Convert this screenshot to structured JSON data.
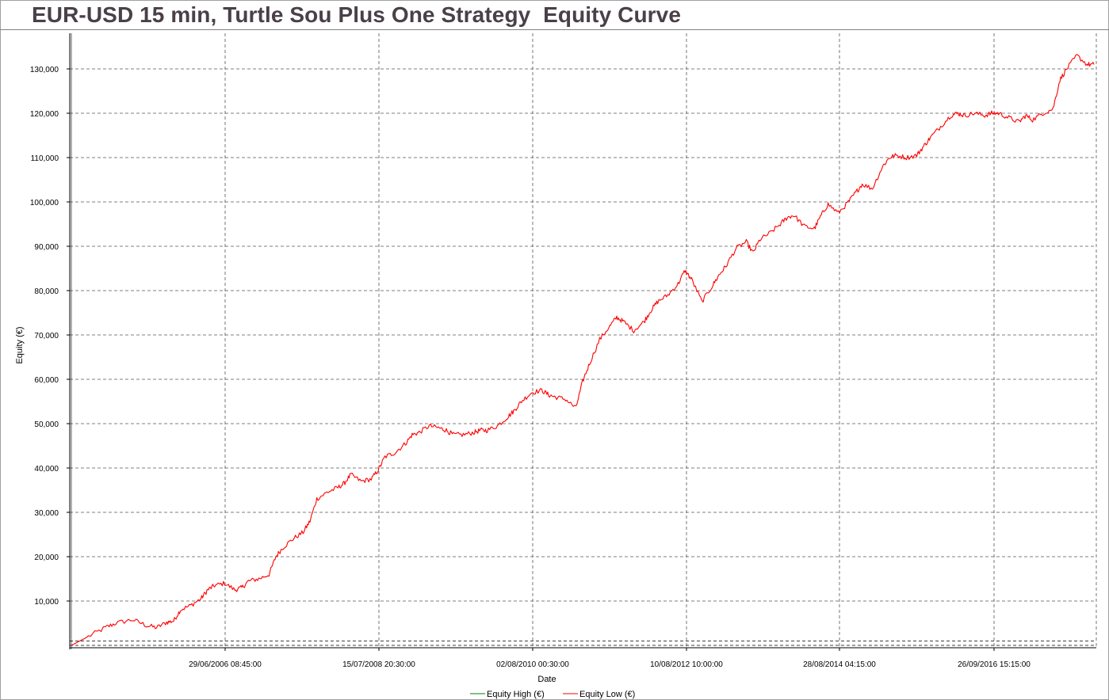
{
  "chart_data": {
    "type": "line",
    "title": "EUR-USD 15 min, Turtle Sou Plus One Strategy  Equity Curve",
    "xlabel": "Date",
    "ylabel": "Equity (€)",
    "ylim": [
      0,
      137000
    ],
    "y_ticks": [
      "10,000",
      "20,000",
      "30,000",
      "40,000",
      "50,000",
      "60,000",
      "70,000",
      "80,000",
      "90,000",
      "100,000",
      "110,000",
      "120,000",
      "130,000"
    ],
    "x_ticks": [
      "29/06/2006 08:45:00",
      "15/07/2008 20:30:00",
      "02/08/2010 00:30:00",
      "10/08/2012 10:00:00",
      "28/08/2014 04:15:00",
      "26/09/2016 15:15:00"
    ],
    "grid": true,
    "legend_position": "bottom",
    "baseline_value": 1000,
    "series": [
      {
        "name": "Equity High (€)",
        "color": "#008000",
        "values": []
      },
      {
        "name": "Equity Low (€)",
        "color": "#ff0000",
        "x": [
          0,
          5,
          10,
          13,
          18,
          22,
          25,
          28,
          30,
          32,
          35,
          38,
          40,
          42,
          45,
          48,
          50,
          52,
          55,
          58,
          60,
          62,
          65,
          68,
          70,
          72,
          75,
          78,
          80,
          82,
          85,
          88,
          90,
          92,
          95,
          98,
          100,
          102,
          105,
          108,
          110,
          112,
          115,
          118,
          120,
          122,
          125,
          128,
          130,
          132,
          135,
          138,
          140,
          142,
          145,
          148,
          150,
          152,
          155,
          158,
          160,
          162,
          165,
          168,
          170,
          172,
          175,
          178,
          180,
          182,
          185,
          188,
          190,
          192,
          195,
          198,
          200,
          202,
          205,
          208,
          210,
          212,
          215,
          218,
          220,
          222,
          225,
          228,
          230,
          232,
          235,
          238,
          240,
          242,
          245,
          248,
          250,
          252,
          255,
          258,
          260,
          262,
          265,
          268,
          270,
          272,
          275,
          278,
          280,
          282,
          285,
          288,
          290,
          292,
          295,
          298,
          300
        ],
        "y": [
          0,
          2000,
          4000,
          5000,
          5800,
          4500,
          4000,
          5200,
          5500,
          8000,
          9000,
          10500,
          12500,
          13500,
          14000,
          12500,
          13000,
          14500,
          15000,
          16000,
          20000,
          22000,
          24000,
          25500,
          28000,
          33000,
          34500,
          35500,
          36500,
          38500,
          37000,
          37500,
          39500,
          42500,
          43500,
          45500,
          47500,
          48000,
          49500,
          49000,
          48500,
          47500,
          47500,
          48000,
          48500,
          48500,
          49500,
          51500,
          53000,
          55000,
          57000,
          57500,
          56500,
          56000,
          55500,
          53500,
          59500,
          63500,
          69000,
          72000,
          74000,
          73000,
          71000,
          73000,
          75500,
          77500,
          79000,
          81500,
          84500,
          82500,
          77500,
          81000,
          83500,
          85500,
          89500,
          91000,
          88500,
          91500,
          93000,
          95000,
          96500,
          97000,
          94500,
          94000,
          97000,
          99500,
          97500,
          100000,
          102000,
          104000,
          103000,
          108000,
          110000,
          110500,
          110000,
          110500,
          112500,
          114500,
          117000,
          119500,
          120000,
          119500,
          120000,
          119500,
          120000,
          120000,
          119000,
          118000,
          119500,
          118500,
          120000,
          121000,
          127500,
          130000,
          133000,
          131000,
          131000
        ]
      }
    ]
  }
}
